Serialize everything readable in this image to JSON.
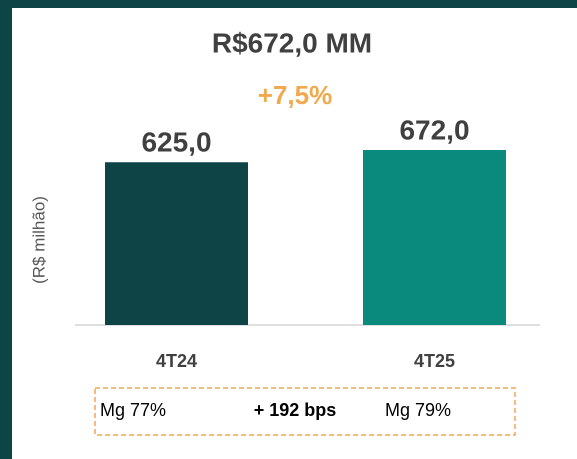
{
  "chart_data": {
    "type": "bar",
    "title": "R$672,0 MM",
    "subtitle": "+7,5%",
    "y_label": "(R$ milhão)",
    "categories": [
      "4T24",
      "4T25"
    ],
    "values": [
      625,
      672
    ],
    "value_labels": [
      "625,0",
      "672,0"
    ],
    "colors": [
      "#0e4446",
      "#0a8a7c"
    ],
    "annotations": [
      "Mg 77%",
      "+ 192 bps",
      "Mg 79%"
    ]
  }
}
